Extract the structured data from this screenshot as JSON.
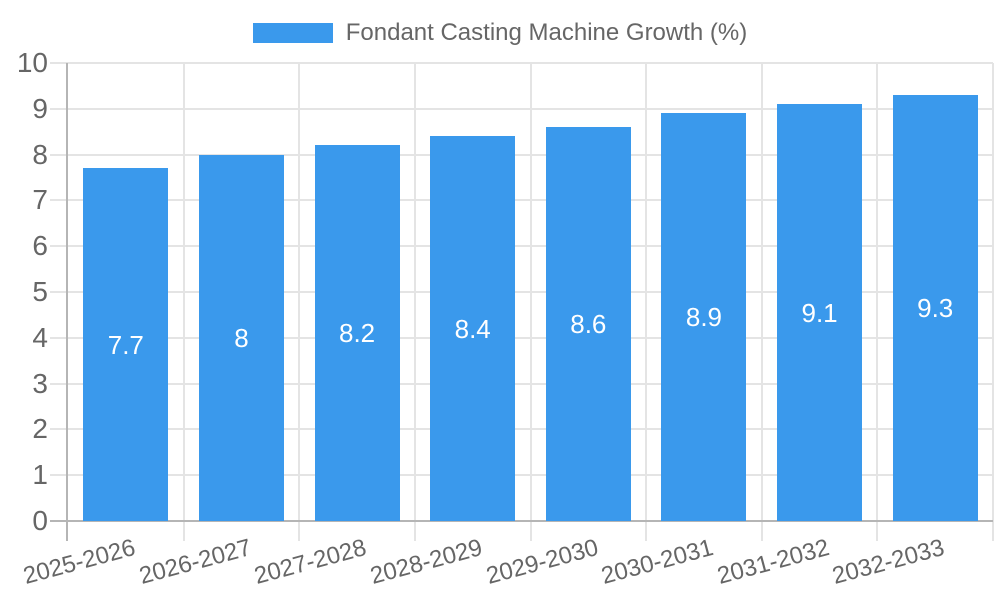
{
  "legend": {
    "label": "Fondant Casting Machine Growth (%)"
  },
  "colors": {
    "bar": "#3A99EC",
    "bar_label": "#FFFFFF",
    "grid": "#E4E4E4",
    "axis": "#B5B5B5",
    "text": "#666666",
    "background": "#FFFFFF"
  },
  "chart_data": {
    "type": "bar",
    "title": "Fondant Casting Machine Growth (%)",
    "categories": [
      "2025-2026",
      "2026-2027",
      "2027-2028",
      "2028-2029",
      "2029-2030",
      "2030-2031",
      "2031-2032",
      "2032-2033"
    ],
    "values": [
      7.7,
      8,
      8.2,
      8.4,
      8.6,
      8.9,
      9.1,
      9.3
    ],
    "xlabel": "",
    "ylabel": "",
    "ylim": [
      0,
      10
    ],
    "ytick_step": 1,
    "ytick_labels": [
      "0",
      "1",
      "2",
      "3",
      "4",
      "5",
      "6",
      "7",
      "8",
      "9",
      "10"
    ],
    "grid": true,
    "legend_position": "top",
    "x_label_rotation_deg": -15,
    "bar_value_label_position": "inside-center"
  }
}
